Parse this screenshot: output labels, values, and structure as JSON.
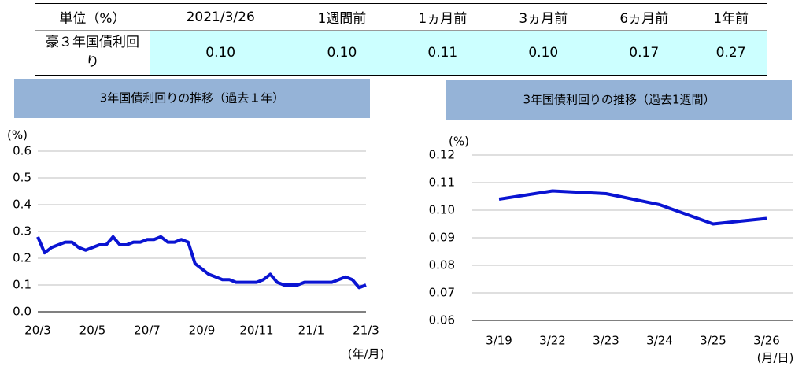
{
  "table": {
    "header": [
      "単位（%）",
      "2021/3/26",
      "1週間前",
      "1ヵ月前",
      "3ヵ月前",
      "6ヵ月前",
      "1年前"
    ],
    "rows": [
      [
        "豪３年国債利回り",
        "0.10",
        "0.10",
        "0.11",
        "0.10",
        "0.17",
        "0.27"
      ]
    ]
  },
  "chart_data": [
    {
      "type": "line",
      "title": "3年国債利回りの推移（過去１年）",
      "y_label": "(%)",
      "x_label": "(年/月)",
      "categories": [
        "20/3",
        null,
        null,
        null,
        null,
        null,
        null,
        null,
        "20/5",
        null,
        null,
        null,
        null,
        null,
        null,
        null,
        "20/7",
        null,
        null,
        null,
        null,
        null,
        null,
        null,
        "20/9",
        null,
        null,
        null,
        null,
        null,
        null,
        null,
        "20/11",
        null,
        null,
        null,
        null,
        null,
        null,
        null,
        "21/1",
        null,
        null,
        null,
        null,
        null,
        null,
        null,
        "21/3"
      ],
      "series": [
        {
          "color": "#0a14d2",
          "values": [
            0.28,
            0.22,
            0.24,
            0.25,
            0.26,
            0.26,
            0.24,
            0.23,
            0.24,
            0.25,
            0.25,
            0.28,
            0.25,
            0.25,
            0.26,
            0.26,
            0.27,
            0.27,
            0.28,
            0.26,
            0.26,
            0.27,
            0.26,
            0.18,
            0.16,
            0.14,
            0.13,
            0.12,
            0.12,
            0.11,
            0.11,
            0.11,
            0.11,
            0.12,
            0.14,
            0.11,
            0.1,
            0.1,
            0.1,
            0.11,
            0.11,
            0.11,
            0.11,
            0.11,
            0.12,
            0.13,
            0.12,
            0.09,
            0.1
          ]
        }
      ],
      "ylim": [
        0,
        0.6
      ],
      "yticks": [
        {
          "value": 0,
          "label": "0.0"
        },
        0.1,
        0.2,
        0.3,
        0.4,
        0.5,
        0.6
      ],
      "grid": true
    },
    {
      "type": "line",
      "title": "3年国債利回りの推移（過去1週間）",
      "y_label": "(%)",
      "x_label": "(月/日)",
      "categories": [
        "3/19",
        "3/22",
        "3/23",
        "3/24",
        "3/25",
        "3/26"
      ],
      "series": [
        {
          "color": "#0a14d2",
          "values": [
            0.104,
            0.107,
            0.106,
            0.102,
            0.095,
            0.097
          ]
        }
      ],
      "ylim": [
        0.06,
        0.12
      ],
      "yticks": [
        0.06,
        0.07,
        0.08,
        0.09,
        {
          "value": 0.1,
          "label": "0.10"
        },
        0.11,
        0.12
      ],
      "grid": true
    }
  ]
}
